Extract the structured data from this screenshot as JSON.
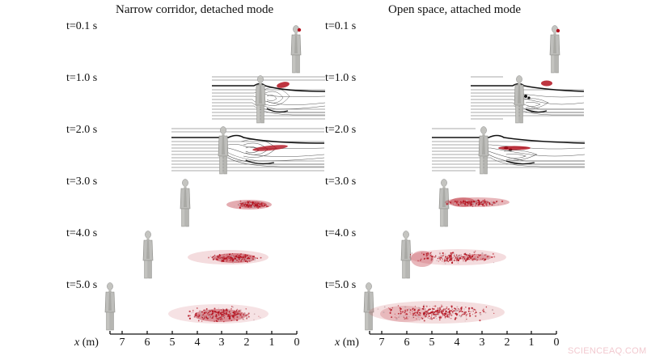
{
  "figure": {
    "panels": [
      {
        "id": "left",
        "title": "Narrow corridor, detached mode",
        "axis": {
          "label_var": "x",
          "label_unit": " (m)",
          "ticks": [
            "7",
            "6",
            "5",
            "4",
            "3",
            "2",
            "1",
            "0"
          ]
        },
        "rows": [
          {
            "label": "t=0.1 s"
          },
          {
            "label": "t=1.0 s"
          },
          {
            "label": "t=2.0 s"
          },
          {
            "label": "t=3.0 s"
          },
          {
            "label": "t=4.0 s"
          },
          {
            "label": "t=5.0 s"
          }
        ]
      },
      {
        "id": "right",
        "title": "Open space, attached mode",
        "axis": {
          "label_var": "x",
          "label_unit": " (m)",
          "ticks": [
            "7",
            "6",
            "5",
            "4",
            "3",
            "2",
            "1",
            "0"
          ]
        },
        "rows": [
          {
            "label": "t=0.1 s"
          },
          {
            "label": "t=1.0 s"
          },
          {
            "label": "t=2.0 s"
          },
          {
            "label": "t=3.0 s"
          },
          {
            "label": "t=4.0 s"
          },
          {
            "label": "t=5.0 s"
          }
        ]
      }
    ],
    "colors": {
      "droplet": "#b3121f",
      "figure": "#b9b9b6",
      "streamline": "#222222"
    }
  },
  "watermark": "SCIENCEAQ.COM"
}
